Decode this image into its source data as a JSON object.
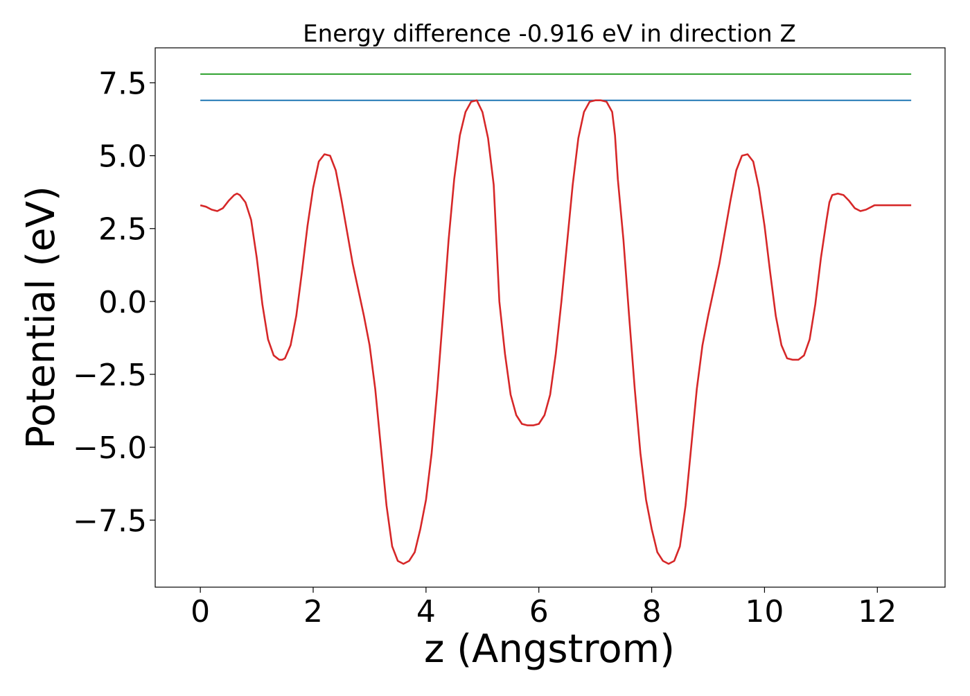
{
  "chart_data": {
    "type": "line",
    "title": "Energy difference -0.916 eV in direction Z",
    "xlabel": "z (Angstrom)",
    "ylabel": "Potential (eV)",
    "xlim": [
      -0.8,
      13.2
    ],
    "ylim": [
      -9.8,
      8.7
    ],
    "xticks": [
      0,
      2,
      4,
      6,
      8,
      10,
      12
    ],
    "xtick_labels": [
      "0",
      "2",
      "4",
      "6",
      "8",
      "10",
      "12"
    ],
    "yticks": [
      7.5,
      5.0,
      2.5,
      0.0,
      -2.5,
      -5.0,
      -7.5
    ],
    "ytick_labels": [
      "7.5",
      "5.0",
      "2.5",
      "0.0",
      "−2.5",
      "−5.0",
      "−7.5"
    ],
    "grid": false,
    "legend": false,
    "series": [
      {
        "color": "#2ca02c",
        "x": [
          0,
          12.6
        ],
        "y": [
          7.8,
          7.8
        ]
      },
      {
        "color": "#1f77b4",
        "x": [
          0,
          12.6
        ],
        "y": [
          6.9,
          6.9
        ]
      },
      {
        "color": "#d62728",
        "x": [
          0,
          0.1,
          0.2,
          0.3,
          0.4,
          0.5,
          0.6,
          0.65,
          0.7,
          0.8,
          0.9,
          1.0,
          1.1,
          1.2,
          1.3,
          1.4,
          1.45,
          1.5,
          1.6,
          1.7,
          1.8,
          1.9,
          2.0,
          2.1,
          2.2,
          2.3,
          2.4,
          2.5,
          2.6,
          2.7,
          2.8,
          2.9,
          3.0,
          3.1,
          3.2,
          3.3,
          3.4,
          3.5,
          3.6,
          3.7,
          3.8,
          3.9,
          4.0,
          4.1,
          4.2,
          4.3,
          4.4,
          4.5,
          4.6,
          4.7,
          4.8,
          4.9,
          5.0,
          5.1,
          5.2,
          5.25,
          5.3,
          5.4,
          5.5,
          5.6,
          5.7,
          5.8,
          5.9,
          6.0,
          6.1,
          6.2,
          6.3,
          6.4,
          6.5,
          6.6,
          6.7,
          6.8,
          6.9,
          7.0,
          7.1,
          7.2,
          7.3,
          7.35,
          7.4,
          7.5,
          7.6,
          7.7,
          7.8,
          7.9,
          8.0,
          8.1,
          8.2,
          8.3,
          8.4,
          8.5,
          8.6,
          8.7,
          8.8,
          8.9,
          9.0,
          9.1,
          9.2,
          9.3,
          9.4,
          9.5,
          9.6,
          9.7,
          9.8,
          9.9,
          10.0,
          10.1,
          10.2,
          10.3,
          10.4,
          10.5,
          10.6,
          10.7,
          10.8,
          10.9,
          11.0,
          11.1,
          11.15,
          11.2,
          11.3,
          11.4,
          11.5,
          11.6,
          11.7,
          11.8,
          11.9,
          11.95,
          12.0,
          12.1,
          12.2,
          12.3,
          12.4,
          12.5,
          12.6
        ],
        "y": [
          3.3,
          3.25,
          3.15,
          3.1,
          3.2,
          3.45,
          3.65,
          3.7,
          3.65,
          3.4,
          2.8,
          1.5,
          -0.1,
          -1.3,
          -1.85,
          -2.0,
          -2.0,
          -1.95,
          -1.5,
          -0.5,
          1.0,
          2.6,
          3.9,
          4.8,
          5.05,
          5.0,
          4.5,
          3.5,
          2.4,
          1.3,
          0.4,
          -0.5,
          -1.5,
          -3.0,
          -5.0,
          -7.0,
          -8.4,
          -8.9,
          -9.0,
          -8.9,
          -8.6,
          -7.8,
          -6.8,
          -5.2,
          -3.0,
          -0.5,
          2.1,
          4.2,
          5.7,
          6.5,
          6.85,
          6.9,
          6.5,
          5.6,
          4.0,
          2.0,
          0.0,
          -1.8,
          -3.2,
          -3.9,
          -4.2,
          -4.25,
          -4.25,
          -4.2,
          -3.9,
          -3.2,
          -1.8,
          0.0,
          2.0,
          4.0,
          5.6,
          6.5,
          6.85,
          6.9,
          6.9,
          6.85,
          6.5,
          5.7,
          4.2,
          2.1,
          -0.5,
          -3.0,
          -5.2,
          -6.8,
          -7.8,
          -8.6,
          -8.9,
          -9.0,
          -8.9,
          -8.4,
          -7.0,
          -5.0,
          -3.0,
          -1.5,
          -0.5,
          0.4,
          1.3,
          2.4,
          3.5,
          4.5,
          5.0,
          5.05,
          4.8,
          3.9,
          2.6,
          1.0,
          -0.5,
          -1.5,
          -1.95,
          -2.0,
          -2.0,
          -1.85,
          -1.3,
          -0.1,
          1.5,
          2.8,
          3.4,
          3.65,
          3.7,
          3.65,
          3.45,
          3.2,
          3.1,
          3.15,
          3.25,
          3.3,
          3.3,
          3.3,
          3.3,
          3.3,
          3.3,
          3.3,
          3.3
        ]
      }
    ]
  }
}
